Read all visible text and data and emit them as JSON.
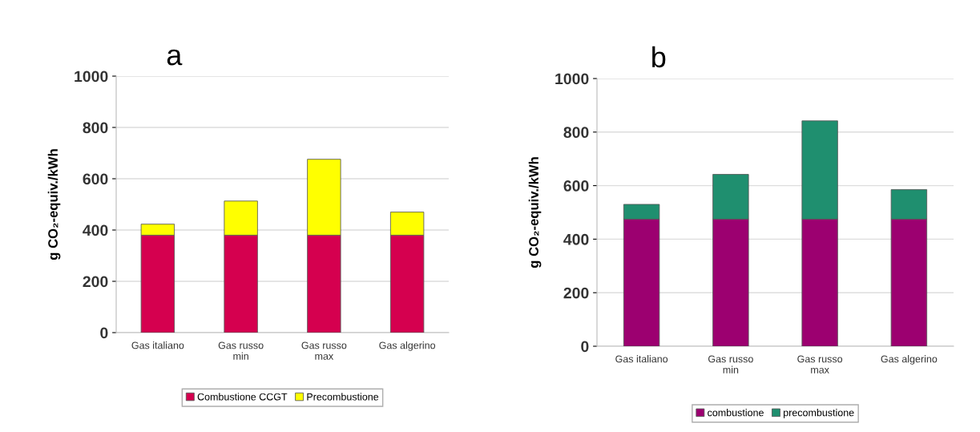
{
  "chart_data": [
    {
      "type": "bar",
      "title": "a",
      "ylabel": "g CO₂-equiv./kWh",
      "stacked": true,
      "categories": [
        "Gas italiano",
        "Gas russo\nmin",
        "Gas russo\nmax",
        "Gas algerino"
      ],
      "series": [
        {
          "name": "Combustione CCGT",
          "color": "#d5004f",
          "values": [
            380,
            380,
            380,
            380
          ]
        },
        {
          "name": "Precombustione",
          "color": "#ffff00",
          "values": [
            43,
            133,
            296,
            90
          ]
        }
      ],
      "ylim": [
        0,
        1000
      ],
      "yticks": [
        0,
        200,
        400,
        600,
        800,
        1000
      ],
      "grid": "y",
      "legend": "bottom"
    },
    {
      "type": "bar",
      "title": "b",
      "ylabel": "g CO₂-equiv./kWh",
      "stacked": true,
      "categories": [
        "Gas italiano",
        "Gas russo\nmin",
        "Gas russo\nmax",
        "Gas algerino"
      ],
      "series": [
        {
          "name": "combustione",
          "color": "#9c0070",
          "values": [
            475,
            475,
            475,
            475
          ]
        },
        {
          "name": "precombustione",
          "color": "#1f8f6f",
          "values": [
            55,
            167,
            367,
            110
          ]
        }
      ],
      "ylim": [
        0,
        1000
      ],
      "yticks": [
        0,
        200,
        400,
        600,
        800,
        1000
      ],
      "grid": "y",
      "legend": "bottom"
    }
  ]
}
